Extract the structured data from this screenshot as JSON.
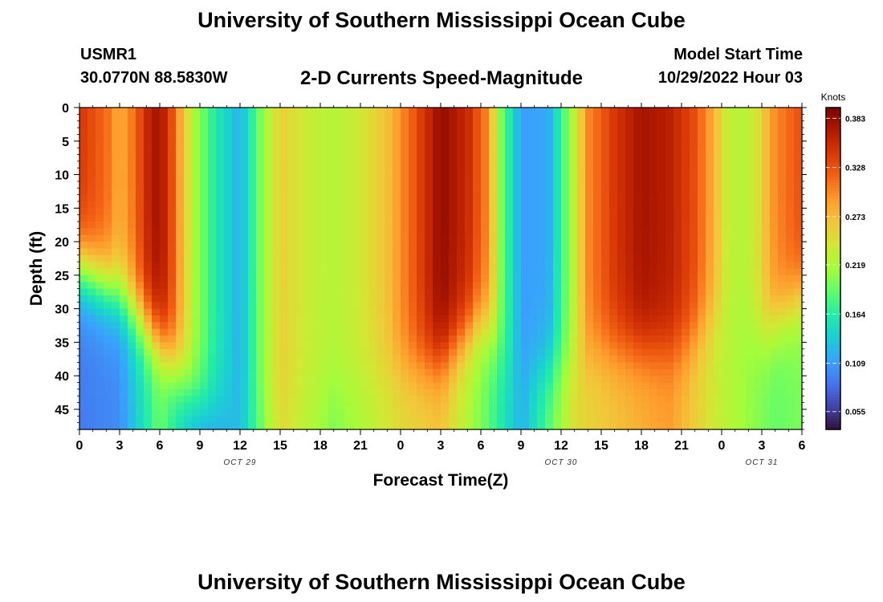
{
  "header": {
    "title": "University of Southern Mississippi Ocean Cube",
    "station": "USMR1",
    "coordinates": "30.0770N  88.5830W",
    "subtitle": "2-D Currents Speed-Magnitude",
    "model_start_label": "Model Start Time",
    "model_start_value": "10/29/2022 Hour 03"
  },
  "footer": {
    "title": "University of Southern Mississippi Ocean Cube"
  },
  "chart_data": {
    "type": "heatmap",
    "title": "2-D Currents Speed-Magnitude",
    "xlabel": "Forecast Time(Z)",
    "ylabel": "Depth (ft)",
    "x_tick_labels": [
      "0",
      "3",
      "6",
      "9",
      "12",
      "15",
      "18",
      "21",
      "0",
      "3",
      "6",
      "9",
      "12",
      "15",
      "18",
      "21",
      "0",
      "3",
      "6"
    ],
    "x_range_hours": [
      0,
      54
    ],
    "date_labels": [
      {
        "text": "OCT 29",
        "hour": 12
      },
      {
        "text": "OCT 30",
        "hour": 36
      },
      {
        "text": "OCT 31",
        "hour": 51
      }
    ],
    "y_tick_labels": [
      "0",
      "5",
      "10",
      "15",
      "20",
      "25",
      "30",
      "35",
      "40",
      "45"
    ],
    "y_range_ft": [
      0,
      48
    ],
    "colorbar": {
      "label": "Knots",
      "ticks": [
        "0.383",
        "0.328",
        "0.273",
        "0.219",
        "0.164",
        "0.109",
        "0.055"
      ],
      "range": [
        0.035,
        0.395
      ],
      "colors": [
        "#30123b",
        "#4145ab",
        "#4675ed",
        "#39a2fc",
        "#1bcfd4",
        "#24eca6",
        "#61fc6c",
        "#a4fc3b",
        "#d1e834",
        "#f3c63a",
        "#fe9b2d",
        "#f36315",
        "#d93806",
        "#b11901",
        "#7a0402"
      ]
    },
    "surface_speed_knots": [
      {
        "hour": 0,
        "value": 0.345
      },
      {
        "hour": 1,
        "value": 0.33
      },
      {
        "hour": 2,
        "value": 0.315
      },
      {
        "hour": 3,
        "value": 0.28
      },
      {
        "hour": 4,
        "value": 0.31
      },
      {
        "hour": 5.5,
        "value": 0.375
      },
      {
        "hour": 6.5,
        "value": 0.36
      },
      {
        "hour": 7.5,
        "value": 0.285
      },
      {
        "hour": 8.5,
        "value": 0.22
      },
      {
        "hour": 10,
        "value": 0.165
      },
      {
        "hour": 12,
        "value": 0.12
      },
      {
        "hour": 13.5,
        "value": 0.2
      },
      {
        "hour": 15,
        "value": 0.26
      },
      {
        "hour": 17,
        "value": 0.235
      },
      {
        "hour": 19,
        "value": 0.225
      },
      {
        "hour": 21,
        "value": 0.24
      },
      {
        "hour": 23,
        "value": 0.27
      },
      {
        "hour": 25,
        "value": 0.325
      },
      {
        "hour": 27,
        "value": 0.385
      },
      {
        "hour": 29,
        "value": 0.355
      },
      {
        "hour": 30.5,
        "value": 0.3
      },
      {
        "hour": 31.5,
        "value": 0.2
      },
      {
        "hour": 33,
        "value": 0.11
      },
      {
        "hour": 35,
        "value": 0.115
      },
      {
        "hour": 36.5,
        "value": 0.2
      },
      {
        "hour": 38,
        "value": 0.3
      },
      {
        "hour": 40,
        "value": 0.345
      },
      {
        "hour": 42,
        "value": 0.375
      },
      {
        "hour": 44,
        "value": 0.365
      },
      {
        "hour": 46,
        "value": 0.33
      },
      {
        "hour": 47.5,
        "value": 0.275
      },
      {
        "hour": 48.5,
        "value": 0.23
      },
      {
        "hour": 49.5,
        "value": 0.225
      },
      {
        "hour": 50.5,
        "value": 0.24
      },
      {
        "hour": 52,
        "value": 0.3
      },
      {
        "hour": 54,
        "value": 0.33
      }
    ],
    "bottom_speed_knots": [
      {
        "hour": 0,
        "value": 0.09
      },
      {
        "hour": 3,
        "value": 0.1
      },
      {
        "hour": 6,
        "value": 0.19
      },
      {
        "hour": 9,
        "value": 0.1
      },
      {
        "hour": 12,
        "value": 0.13
      },
      {
        "hour": 15,
        "value": 0.25
      },
      {
        "hour": 19,
        "value": 0.2
      },
      {
        "hour": 24,
        "value": 0.25
      },
      {
        "hour": 27,
        "value": 0.265
      },
      {
        "hour": 30,
        "value": 0.2
      },
      {
        "hour": 33,
        "value": 0.12
      },
      {
        "hour": 37,
        "value": 0.25
      },
      {
        "hour": 44,
        "value": 0.29
      },
      {
        "hour": 48,
        "value": 0.23
      },
      {
        "hour": 52,
        "value": 0.19
      },
      {
        "hour": 54,
        "value": 0.2
      }
    ],
    "layer_boundary_depth_ft": [
      {
        "hour": 0,
        "value": 24
      },
      {
        "hour": 3,
        "value": 28
      },
      {
        "hour": 6,
        "value": 35
      },
      {
        "hour": 9,
        "value": 45
      },
      {
        "hour": 15,
        "value": 44
      },
      {
        "hour": 21,
        "value": 40
      },
      {
        "hour": 27,
        "value": 38
      },
      {
        "hour": 30,
        "value": 32
      },
      {
        "hour": 33,
        "value": 40
      },
      {
        "hour": 39,
        "value": 36
      },
      {
        "hour": 45,
        "value": 36
      },
      {
        "hour": 48,
        "value": 30
      },
      {
        "hour": 51,
        "value": 34
      },
      {
        "hour": 54,
        "value": 28
      }
    ]
  }
}
